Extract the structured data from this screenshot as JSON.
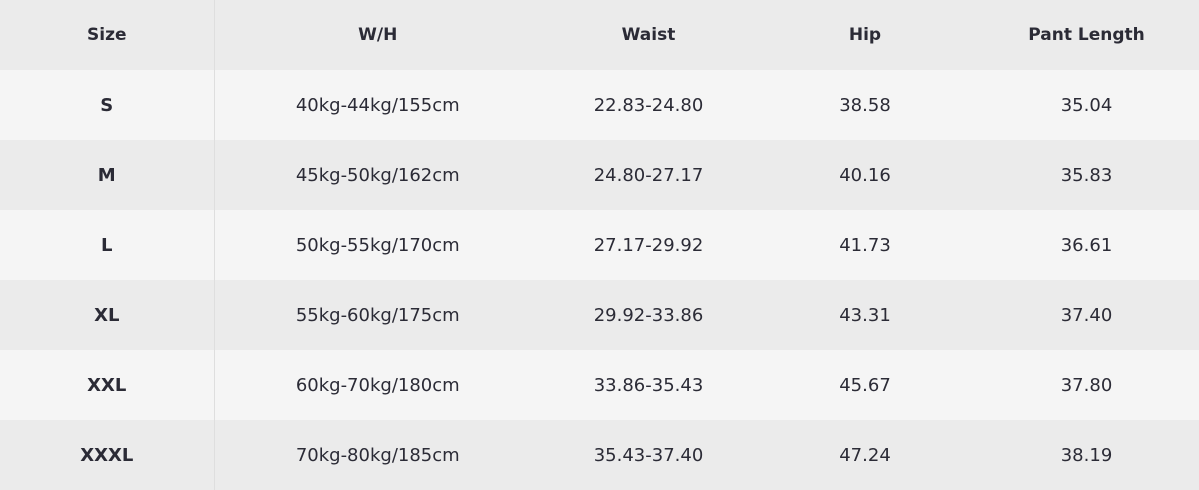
{
  "table": {
    "headers": [
      "Size",
      "W/H",
      "Waist",
      "Hip",
      "Pant Length"
    ],
    "rows": [
      [
        "S",
        "40kg-44kg/155cm",
        "22.83-24.80",
        "38.58",
        "35.04"
      ],
      [
        "M",
        "45kg-50kg/162cm",
        "24.80-27.17",
        "40.16",
        "35.83"
      ],
      [
        "L",
        "50kg-55kg/170cm",
        "27.17-29.92",
        "41.73",
        "36.61"
      ],
      [
        "XL",
        "55kg-60kg/175cm",
        "29.92-33.86",
        "43.31",
        "37.40"
      ],
      [
        "XXL",
        "60kg-70kg/180cm",
        "33.86-35.43",
        "45.67",
        "37.80"
      ],
      [
        "XXXL",
        "70kg-80kg/185cm",
        "35.43-37.40",
        "47.24",
        "38.19"
      ]
    ]
  }
}
